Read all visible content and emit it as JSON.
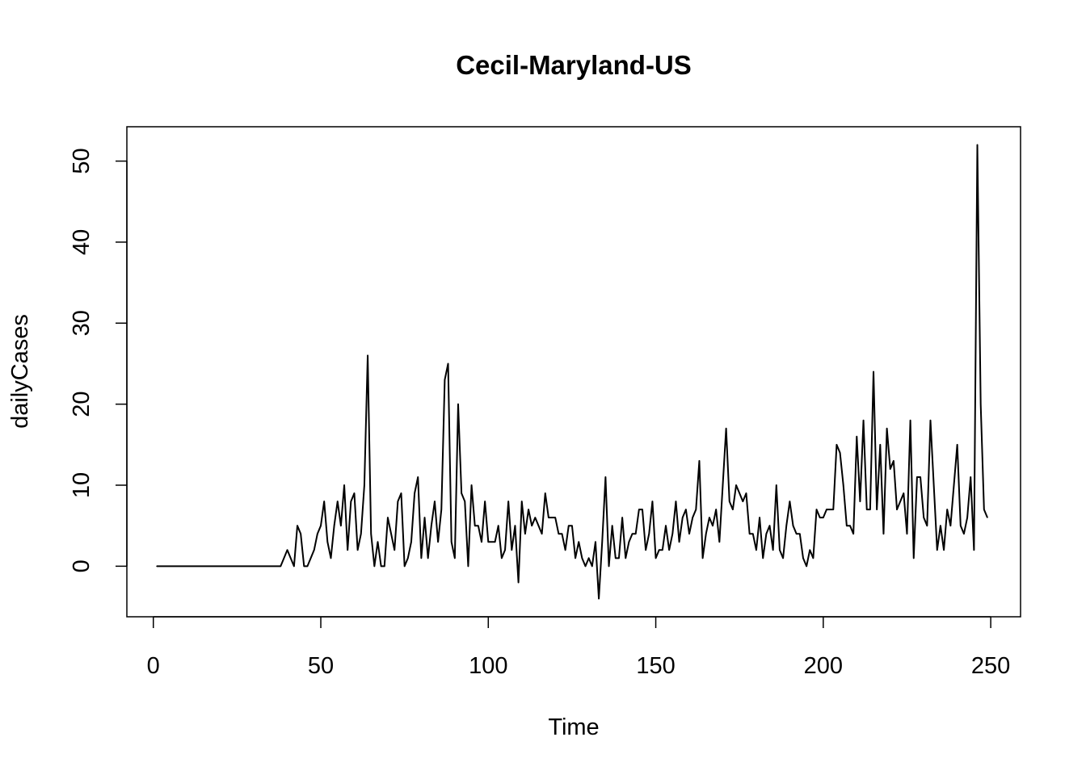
{
  "chart_data": {
    "type": "line",
    "title": "Cecil-Maryland-US",
    "xlabel": "Time",
    "ylabel": "dailyCases",
    "xlim": [
      -7.9,
      258.9
    ],
    "ylim": [
      -6.24,
      54.24
    ],
    "xticks": [
      0,
      50,
      100,
      150,
      200,
      250
    ],
    "yticks": [
      0,
      10,
      20,
      30,
      40,
      50
    ],
    "xtick_labels": [
      "0",
      "50",
      "100",
      "150",
      "200",
      "250"
    ],
    "ytick_labels": [
      "0",
      "10",
      "20",
      "30",
      "40",
      "50"
    ],
    "grid": false,
    "legend": "none",
    "line_color": "#000000",
    "x_start": 1,
    "series": [
      {
        "values": [
          0,
          0,
          0,
          0,
          0,
          0,
          0,
          0,
          0,
          0,
          0,
          0,
          0,
          0,
          0,
          0,
          0,
          0,
          0,
          0,
          0,
          0,
          0,
          0,
          0,
          0,
          0,
          0,
          0,
          0,
          0,
          0,
          0,
          0,
          0,
          0,
          0,
          0,
          1,
          2,
          1,
          0,
          5,
          4,
          0,
          0,
          1,
          2,
          4,
          5,
          8,
          3,
          1,
          5,
          8,
          5,
          10,
          2,
          8,
          9,
          2,
          4,
          10,
          26,
          4,
          0,
          3,
          0,
          0,
          6,
          4,
          2,
          8,
          9,
          0,
          1,
          3,
          9,
          11,
          1,
          6,
          1,
          5,
          8,
          3,
          7,
          23,
          25,
          3,
          1,
          20,
          9,
          8,
          0,
          10,
          5,
          5,
          3,
          8,
          3,
          3,
          3,
          5,
          1,
          2,
          8,
          2,
          5,
          -2,
          8,
          4,
          7,
          5,
          6,
          5,
          4,
          9,
          6,
          6,
          6,
          4,
          4,
          2,
          5,
          5,
          1,
          3,
          1,
          0,
          1,
          0,
          3,
          -4,
          3,
          11,
          0,
          5,
          1,
          1,
          6,
          1,
          3,
          4,
          4,
          7,
          7,
          2,
          4,
          8,
          1,
          2,
          2,
          5,
          2,
          4,
          8,
          3,
          6,
          7,
          4,
          6,
          7,
          13,
          1,
          4,
          6,
          5,
          7,
          3,
          10,
          17,
          8,
          7,
          10,
          9,
          8,
          9,
          4,
          4,
          2,
          6,
          1,
          4,
          5,
          2,
          10,
          2,
          1,
          5,
          8,
          5,
          4,
          4,
          1,
          0,
          2,
          1,
          7,
          6,
          6,
          7,
          7,
          7,
          15,
          14,
          10,
          5,
          5,
          4,
          16,
          8,
          18,
          7,
          7,
          24,
          7,
          15,
          4,
          17,
          12,
          13,
          7,
          8,
          9,
          4,
          18,
          1,
          11,
          11,
          6,
          5,
          18,
          10,
          2,
          5,
          2,
          7,
          5,
          10,
          15,
          5,
          4,
          6,
          11,
          2,
          52,
          20,
          7,
          6
        ]
      }
    ]
  }
}
